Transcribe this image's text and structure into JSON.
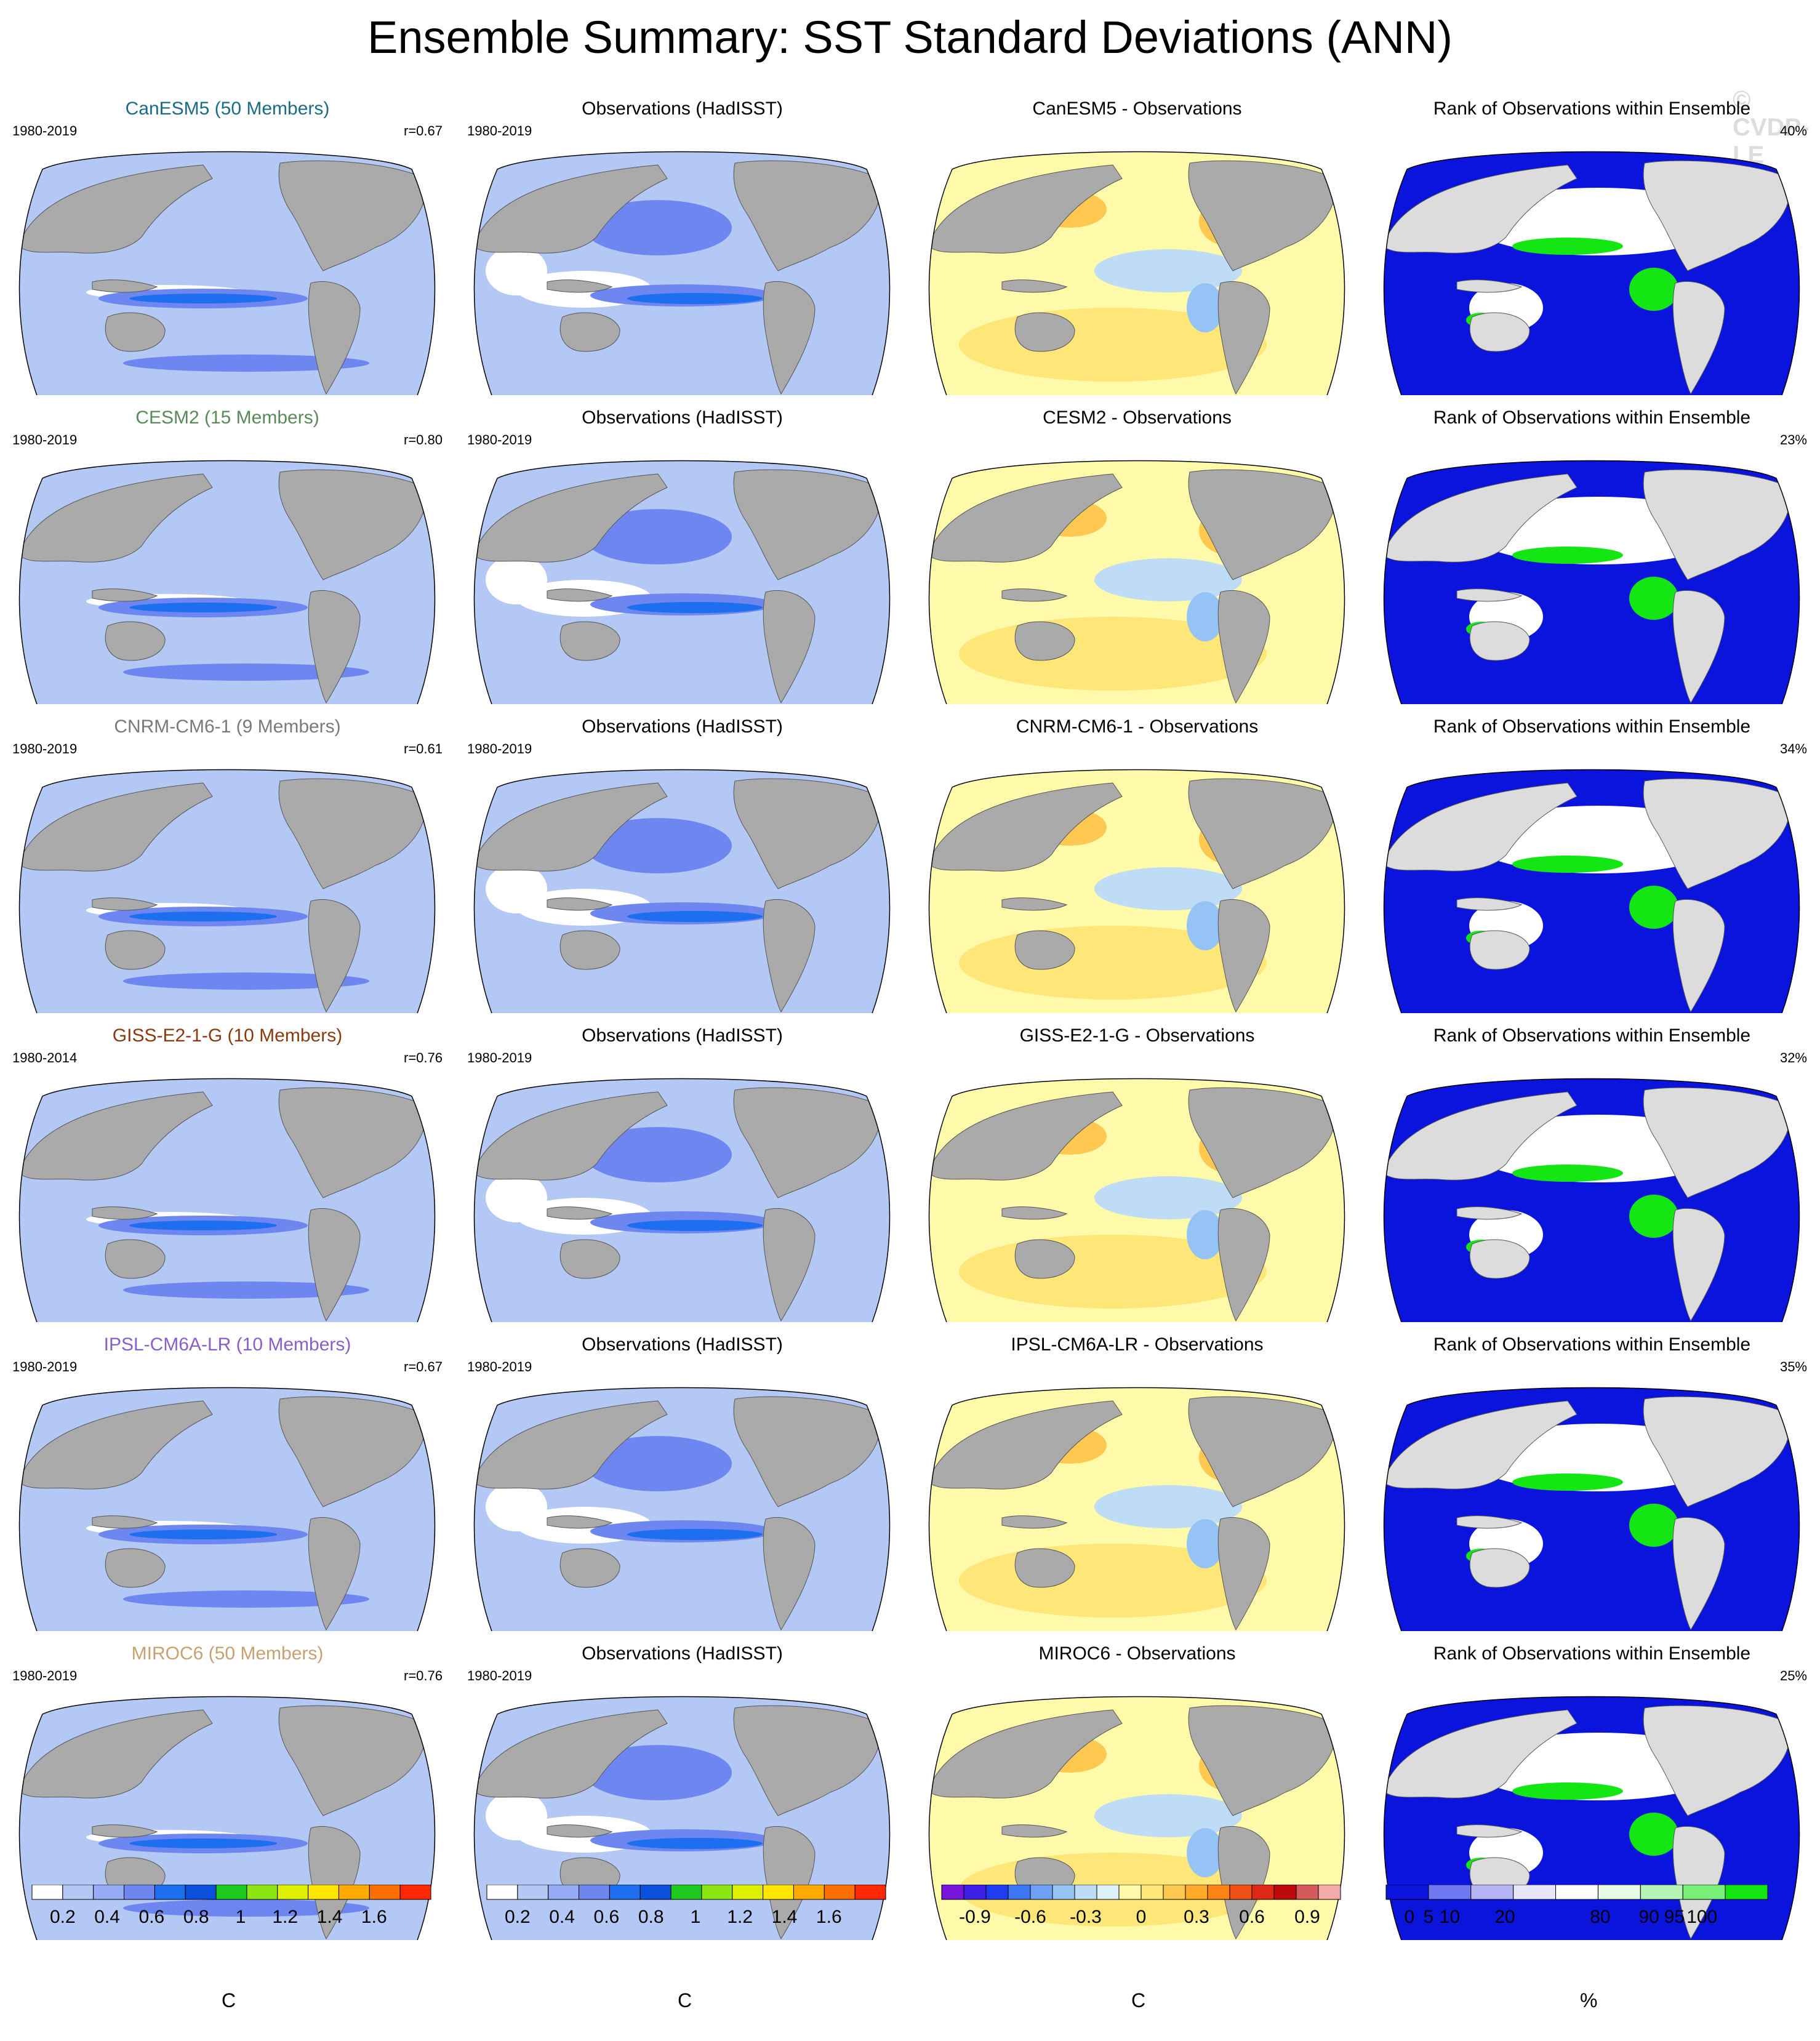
{
  "title": "Ensemble Summary: SST Standard Deviations (ANN)",
  "watermark": "© CVDP-LE",
  "rows": [
    {
      "model": {
        "title": "CanESM5 (50 Members)",
        "color": "#1a6b86",
        "years": "1980-2019",
        "r": "r=0.67"
      },
      "obs": {
        "title": "Observations (HadISST)",
        "years": "1980-2019"
      },
      "diff": {
        "title": "CanESM5 - Observations"
      },
      "rank": {
        "title": "Rank of Observations within Ensemble",
        "pct": "40%"
      }
    },
    {
      "model": {
        "title": "CESM2 (15 Members)",
        "color": "#5a8a5a",
        "years": "1980-2019",
        "r": "r=0.80"
      },
      "obs": {
        "title": "Observations (HadISST)",
        "years": "1980-2019"
      },
      "diff": {
        "title": "CESM2 - Observations"
      },
      "rank": {
        "title": "Rank of Observations within Ensemble",
        "pct": "23%"
      }
    },
    {
      "model": {
        "title": "CNRM-CM6-1 (9 Members)",
        "color": "#7a7a7a",
        "years": "1980-2019",
        "r": "r=0.61"
      },
      "obs": {
        "title": "Observations (HadISST)",
        "years": "1980-2019"
      },
      "diff": {
        "title": "CNRM-CM6-1 - Observations"
      },
      "rank": {
        "title": "Rank of Observations within Ensemble",
        "pct": "34%"
      }
    },
    {
      "model": {
        "title": "GISS-E2-1-G (10 Members)",
        "color": "#8b3a10",
        "years": "1980-2014",
        "r": "r=0.76"
      },
      "obs": {
        "title": "Observations (HadISST)",
        "years": "1980-2019"
      },
      "diff": {
        "title": "GISS-E2-1-G - Observations"
      },
      "rank": {
        "title": "Rank of Observations within Ensemble",
        "pct": "32%"
      }
    },
    {
      "model": {
        "title": "IPSL-CM6A-LR (10 Members)",
        "color": "#8a5ec9",
        "years": "1980-2019",
        "r": "r=0.67"
      },
      "obs": {
        "title": "Observations (HadISST)",
        "years": "1980-2019"
      },
      "diff": {
        "title": "IPSL-CM6A-LR - Observations"
      },
      "rank": {
        "title": "Rank of Observations within Ensemble",
        "pct": "35%"
      }
    },
    {
      "model": {
        "title": "MIROC6 (50 Members)",
        "color": "#c9a070",
        "years": "1980-2019",
        "r": "r=0.76"
      },
      "obs": {
        "title": "Observations (HadISST)",
        "years": "1980-2019"
      },
      "diff": {
        "title": "MIROC6 - Observations"
      },
      "rank": {
        "title": "Rank of Observations within Ensemble",
        "pct": "25%"
      }
    }
  ],
  "colorbars": {
    "sd": {
      "unit": "C",
      "colors": [
        "#ffffff",
        "#b4c8f5",
        "#96aaf5",
        "#6e87f0",
        "#1e6ef0",
        "#0a50dc",
        "#1ec81e",
        "#8ce614",
        "#dcf000",
        "#ffe600",
        "#ffaa00",
        "#ff6e00",
        "#ff2800"
      ],
      "ticks": [
        "0.2",
        "0.4",
        "0.6",
        "0.8",
        "1",
        "1.2",
        "1.4",
        "1.6"
      ]
    },
    "diff": {
      "unit": "C",
      "colors": [
        "#7814dc",
        "#3c1ee6",
        "#1e3cf0",
        "#3c78f5",
        "#6ea0f5",
        "#96c3f5",
        "#bedcf5",
        "#dcf0fa",
        "#fffaaa",
        "#ffe678",
        "#ffc850",
        "#ffaa28",
        "#ff8214",
        "#f05014",
        "#dc2814",
        "#be0a0a",
        "#d25a5a",
        "#f5aaaa"
      ],
      "ticks": [
        "-0.9",
        "-0.6",
        "-0.3",
        "0",
        "0.3",
        "0.6",
        "0.9"
      ]
    },
    "rank": {
      "unit": "%",
      "colors": [
        "#0a14dc",
        "#6e78f0",
        "#b4b4f5",
        "#e6e6fa",
        "#ffffff",
        "#e6fae6",
        "#b4f5b4",
        "#78f078",
        "#14e614"
      ],
      "ticks": [
        "0",
        "5",
        "10",
        "20",
        "80",
        "90",
        "95",
        "100"
      ]
    }
  }
}
